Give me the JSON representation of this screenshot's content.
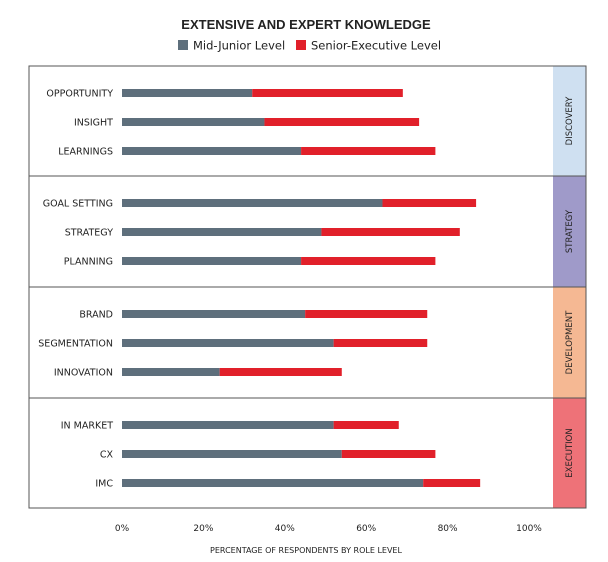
{
  "chart_data": {
    "type": "bar",
    "orientation": "horizontal",
    "stacked": true,
    "title": "EXTENSIVE AND EXPERT KNOWLEDGE",
    "xlabel": "PERCENTAGE OF RESPONDENTS BY ROLE LEVEL",
    "xlim": [
      0,
      100
    ],
    "x_ticks": [
      "0%",
      "20%",
      "40%",
      "60%",
      "80%",
      "100%"
    ],
    "legend_position": "top",
    "groups": [
      {
        "name": "DISCOVERY",
        "color": "#cfe0f1",
        "categories": [
          "OPPORTUNITY",
          "INSIGHT",
          "LEARNINGS"
        ]
      },
      {
        "name": "STRATEGY",
        "color": "#9f9ac9",
        "categories": [
          "GOAL SETTING",
          "STRATEGY",
          "PLANNING"
        ]
      },
      {
        "name": "DEVELOPMENT",
        "color": "#f5b893",
        "categories": [
          "BRAND",
          "SEGMENTATION",
          "INNOVATION"
        ]
      },
      {
        "name": "EXECUTION",
        "color": "#ee7278",
        "categories": [
          "IN MARKET",
          "CX",
          "IMC"
        ]
      }
    ],
    "categories": [
      "OPPORTUNITY",
      "INSIGHT",
      "LEARNINGS",
      "GOAL SETTING",
      "STRATEGY",
      "PLANNING",
      "BRAND",
      "SEGMENTATION",
      "INNOVATION",
      "IN MARKET",
      "CX",
      "IMC"
    ],
    "series": [
      {
        "name": "Mid-Junior Level",
        "color": "#5e6f7c",
        "values": [
          32,
          35,
          44,
          64,
          49,
          44,
          45,
          52,
          24,
          52,
          54,
          74
        ]
      },
      {
        "name": "Senior-Executive Level",
        "color": "#e1202a",
        "values": [
          37,
          38,
          33,
          23,
          34,
          33,
          30,
          23,
          30,
          16,
          23,
          14
        ]
      }
    ],
    "grid": false
  }
}
